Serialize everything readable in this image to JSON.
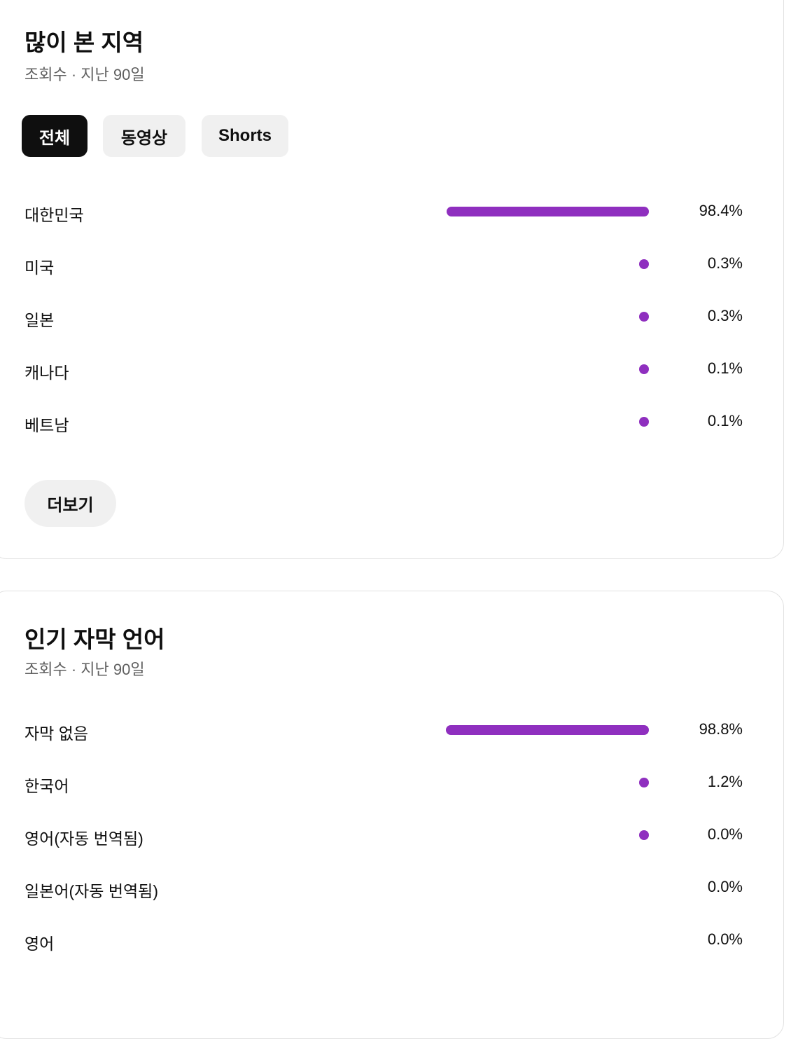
{
  "accent_color": "#8f2fbf",
  "regions": {
    "title": "많이 본 지역",
    "subtitle": "조회수 · 지난 90일",
    "tabs": [
      {
        "label": "전체",
        "active": true
      },
      {
        "label": "동영상",
        "active": false
      },
      {
        "label": "Shorts",
        "active": false
      }
    ],
    "rows": [
      {
        "label": "대한민국",
        "value": "98.4%",
        "percent": 98.4,
        "bar_visible": true
      },
      {
        "label": "미국",
        "value": "0.3%",
        "percent": 0.3,
        "bar_visible": true
      },
      {
        "label": "일본",
        "value": "0.3%",
        "percent": 0.3,
        "bar_visible": true
      },
      {
        "label": "캐나다",
        "value": "0.1%",
        "percent": 0.1,
        "bar_visible": true
      },
      {
        "label": "베트남",
        "value": "0.1%",
        "percent": 0.1,
        "bar_visible": true
      }
    ],
    "more_label": "더보기"
  },
  "subtitles": {
    "title": "인기 자막 언어",
    "subtitle": "조회수 · 지난 90일",
    "rows": [
      {
        "label": "자막 없음",
        "value": "98.8%",
        "percent": 98.8,
        "bar_visible": true
      },
      {
        "label": "한국어",
        "value": "1.2%",
        "percent": 1.2,
        "bar_visible": true
      },
      {
        "label": "영어(자동 번역됨)",
        "value": "0.0%",
        "percent": 0.0,
        "bar_visible": true
      },
      {
        "label": "일본어(자동 번역됨)",
        "value": "0.0%",
        "percent": 0.0,
        "bar_visible": false
      },
      {
        "label": "영어",
        "value": "0.0%",
        "percent": 0.0,
        "bar_visible": false
      }
    ]
  }
}
